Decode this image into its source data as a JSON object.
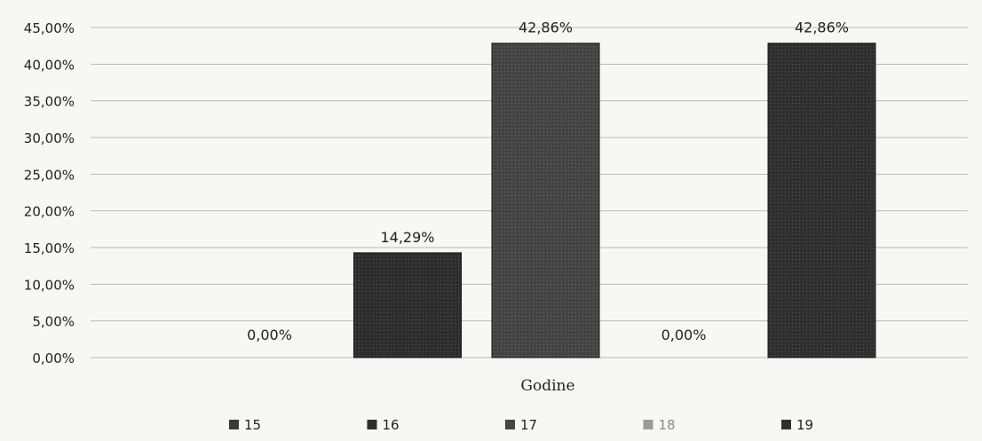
{
  "chart_data": {
    "type": "bar",
    "title": "",
    "xlabel": "Godine",
    "ylabel": "",
    "ylim": [
      0,
      45
    ],
    "yticks": [
      0,
      5,
      10,
      15,
      20,
      25,
      30,
      35,
      40,
      45
    ],
    "ytick_labels": [
      "0,00%",
      "5,00%",
      "10,00%",
      "15,00%",
      "20,00%",
      "25,00%",
      "30,00%",
      "35,00%",
      "40,00%",
      "45,00%"
    ],
    "grid": true,
    "legend_position": "bottom",
    "categories": [
      "Godine"
    ],
    "series": [
      {
        "name": "15",
        "values": [
          0.0
        ],
        "label": "0,00%",
        "color": "#3a3a3a"
      },
      {
        "name": "16",
        "values": [
          14.29
        ],
        "label": "14,29%",
        "color": "#2e2e2e"
      },
      {
        "name": "17",
        "values": [
          42.86
        ],
        "label": "42,86%",
        "color": "#454545"
      },
      {
        "name": "18",
        "values": [
          0.0
        ],
        "label": "0,00%",
        "color": "#9a9a9a"
      },
      {
        "name": "19",
        "values": [
          42.86
        ],
        "label": "42,86%",
        "color": "#303030"
      }
    ]
  }
}
